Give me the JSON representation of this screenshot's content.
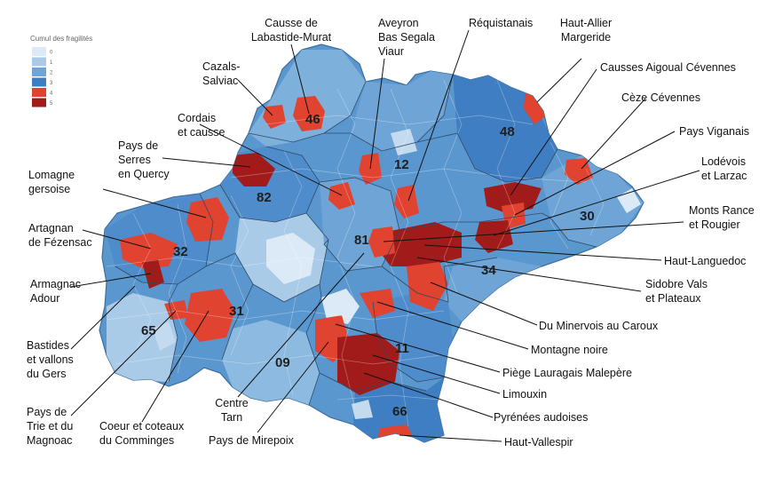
{
  "legend": {
    "title": "Cumul des fragilités",
    "levels": [
      {
        "label": "0",
        "color": "#dce9f6"
      },
      {
        "label": "1",
        "color": "#a9cbe7"
      },
      {
        "label": "2",
        "color": "#6fa5d6"
      },
      {
        "label": "3",
        "color": "#3f7ec2"
      },
      {
        "label": "4",
        "color": "#e0432f"
      },
      {
        "label": "5",
        "color": "#a11b1b"
      }
    ]
  },
  "departments": [
    "46",
    "48",
    "12",
    "82",
    "30",
    "32",
    "81",
    "34",
    "31",
    "65",
    "09",
    "11",
    "66"
  ],
  "territories": [
    "Causse de\nLabastide-Murat",
    "Aveyron\nBas Segala\nViaur",
    "Réquistanais",
    "Haut-Allier\nMargeride",
    "Cazals-\nSalviac",
    "Causses Aigoual Cévennes",
    "Cèze Cévennes",
    "Cordais\net causse",
    "Pays Viganais",
    "Pays de\nSerres\nen Quercy",
    "Lodévois\net Larzac",
    "Lomagne\ngersoise",
    "Monts Rance\net Rougier",
    "Artagnan\nde Fézensac",
    "Haut-Languedoc",
    "Sidobre Vals\net Plateaux",
    "Armagnac\nAdour",
    "Du Minervois au Caroux",
    "Bastides\net vallons\ndu Gers",
    "Montagne noire",
    "Piège Lauragais Malepère",
    "Limouxin",
    "Pays de\nTrie et du\nMagnoac",
    "Coeur et coteaux\ndu Comminges",
    "Centre\nTarn",
    "Pyrénées audoises",
    "Pays de Mirepoix",
    "Haut-Vallespir"
  ]
}
